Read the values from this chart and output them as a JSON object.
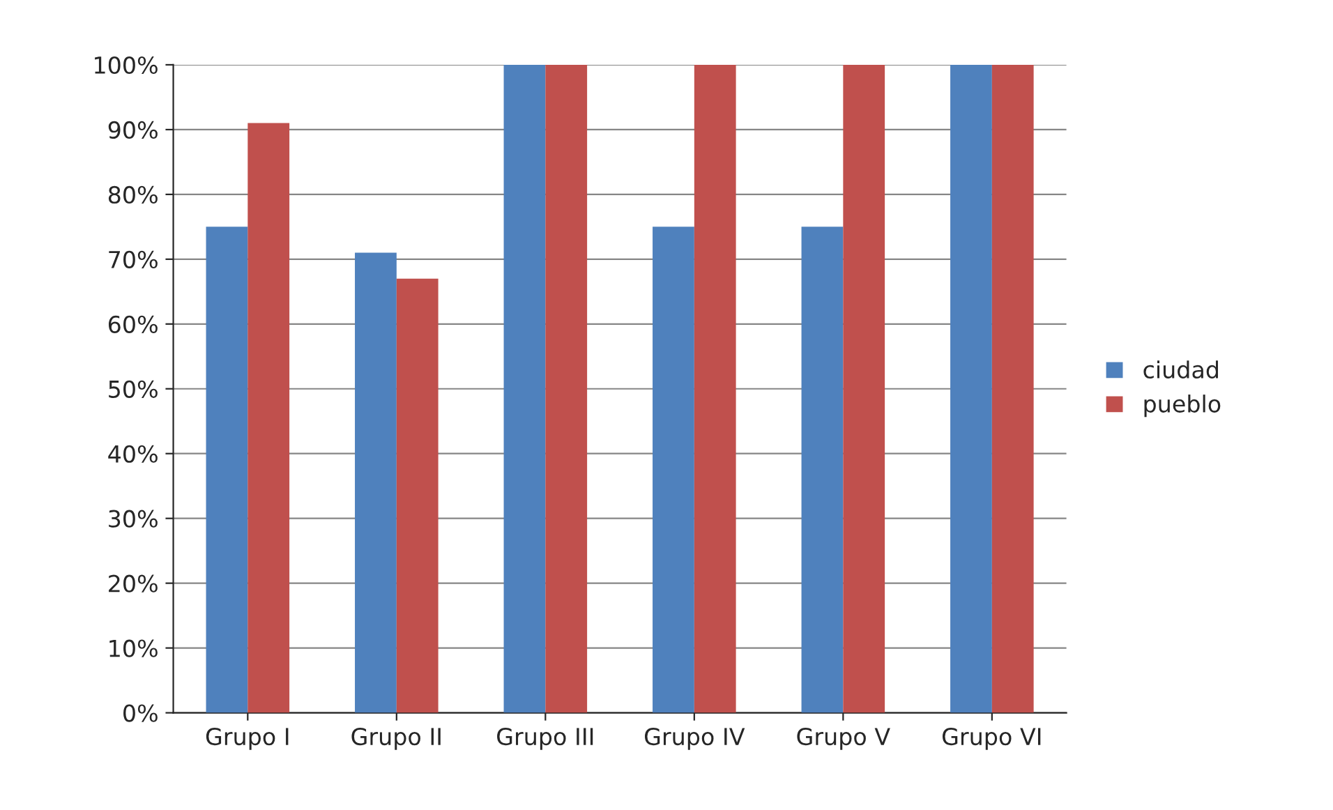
{
  "chart_data": {
    "type": "bar",
    "categories": [
      "Grupo I",
      "Grupo II",
      "Grupo III",
      "Grupo IV",
      "Grupo V",
      "Grupo VI"
    ],
    "series": [
      {
        "name": "ciudad",
        "color": "#4f81bd",
        "values": [
          75,
          71,
          100,
          75,
          75,
          100
        ]
      },
      {
        "name": "pueblo",
        "color": "#c0504d",
        "values": [
          91,
          67,
          100,
          100,
          100,
          100
        ]
      }
    ],
    "ylim": [
      0,
      100
    ],
    "yticks": [
      {
        "value": 0,
        "label": "0%"
      },
      {
        "value": 10,
        "label": "10%"
      },
      {
        "value": 20,
        "label": "20%"
      },
      {
        "value": 30,
        "label": "30%"
      },
      {
        "value": 40,
        "label": "40%"
      },
      {
        "value": 50,
        "label": "50%"
      },
      {
        "value": 60,
        "label": "60%"
      },
      {
        "value": 70,
        "label": "70%"
      },
      {
        "value": 80,
        "label": "80%"
      },
      {
        "value": 90,
        "label": "90%"
      },
      {
        "value": 100,
        "label": "100%"
      }
    ],
    "grid": "y",
    "legend": "right"
  }
}
